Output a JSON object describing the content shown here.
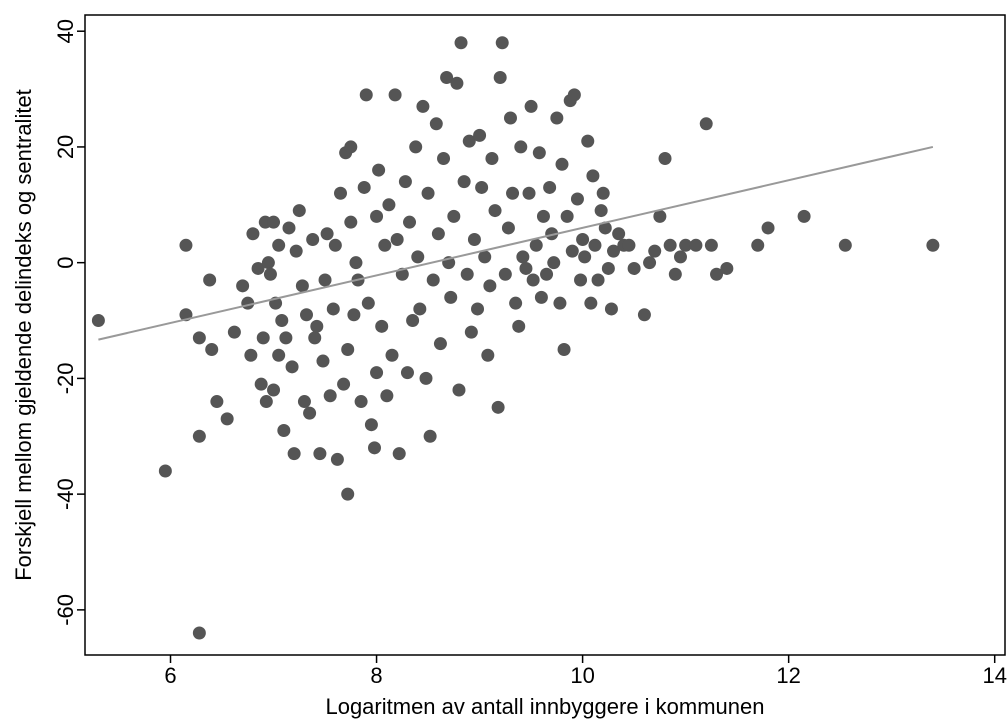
{
  "chart_data": {
    "type": "scatter",
    "xlabel": "Logaritmen av antall innbyggere i kommunen",
    "ylabel": "Forskjell mellom gjeldende delindeks og sentralitet",
    "xlim": [
      5.17,
      14.1
    ],
    "ylim": [
      -67.8,
      42.8
    ],
    "xticks": [
      6,
      8,
      10,
      12,
      14
    ],
    "yticks": [
      -60,
      -40,
      -20,
      0,
      20,
      40
    ],
    "grid": false,
    "series": [
      {
        "color": "#555555",
        "x": [
          5.3,
          5.95,
          6.15,
          6.15,
          6.28,
          6.28,
          6.28,
          6.38,
          6.4,
          6.45,
          6.55,
          6.62,
          6.7,
          6.75,
          6.78,
          6.8,
          6.85,
          6.88,
          6.9,
          6.92,
          6.93,
          6.95,
          6.97,
          7.0,
          7.0,
          7.02,
          7.05,
          7.05,
          7.08,
          7.1,
          7.12,
          7.15,
          7.18,
          7.2,
          7.22,
          7.25,
          7.28,
          7.3,
          7.32,
          7.35,
          7.38,
          7.4,
          7.42,
          7.45,
          7.48,
          7.5,
          7.52,
          7.55,
          7.58,
          7.6,
          7.62,
          7.65,
          7.68,
          7.7,
          7.72,
          7.72,
          7.75,
          7.75,
          7.78,
          7.8,
          7.82,
          7.85,
          7.88,
          7.9,
          7.92,
          7.95,
          7.98,
          8.0,
          8.0,
          8.02,
          8.05,
          8.08,
          8.1,
          8.12,
          8.15,
          8.18,
          8.2,
          8.22,
          8.25,
          8.28,
          8.3,
          8.32,
          8.35,
          8.38,
          8.4,
          8.42,
          8.45,
          8.48,
          8.5,
          8.52,
          8.55,
          8.58,
          8.6,
          8.62,
          8.65,
          8.68,
          8.7,
          8.72,
          8.75,
          8.78,
          8.8,
          8.82,
          8.85,
          8.88,
          8.9,
          8.92,
          8.95,
          8.98,
          9.0,
          9.02,
          9.05,
          9.08,
          9.1,
          9.12,
          9.15,
          9.18,
          9.2,
          9.22,
          9.25,
          9.28,
          9.3,
          9.32,
          9.35,
          9.38,
          9.4,
          9.42,
          9.45,
          9.48,
          9.5,
          9.52,
          9.55,
          9.58,
          9.6,
          9.62,
          9.65,
          9.68,
          9.7,
          9.72,
          9.75,
          9.78,
          9.8,
          9.82,
          9.85,
          9.88,
          9.9,
          9.92,
          9.95,
          9.98,
          10.0,
          10.02,
          10.05,
          10.08,
          10.1,
          10.12,
          10.15,
          10.18,
          10.2,
          10.22,
          10.25,
          10.28,
          10.3,
          10.35,
          10.4,
          10.45,
          10.5,
          10.6,
          10.65,
          10.7,
          10.75,
          10.8,
          10.85,
          10.9,
          10.95,
          11.0,
          11.1,
          11.2,
          11.25,
          11.3,
          11.4,
          11.7,
          11.8,
          12.15,
          12.55,
          13.4
        ],
        "values": [
          -10,
          -36,
          3,
          -9,
          -13,
          -30,
          -64,
          -3,
          -15,
          -24,
          -27,
          -12,
          -4,
          -7,
          -16,
          5,
          -1,
          -21,
          -13,
          7,
          -24,
          0,
          -2,
          -22,
          7,
          -7,
          -16,
          3,
          -10,
          -29,
          -13,
          6,
          -18,
          -33,
          2,
          9,
          -4,
          -24,
          -9,
          -26,
          4,
          -13,
          -11,
          -33,
          -17,
          -3,
          5,
          -23,
          -8,
          3,
          -34,
          12,
          -21,
          19,
          -40,
          -15,
          7,
          20,
          -9,
          0,
          -3,
          -24,
          13,
          29,
          -7,
          -28,
          -32,
          -19,
          8,
          16,
          -11,
          3,
          -23,
          10,
          -16,
          29,
          4,
          -33,
          -2,
          14,
          -19,
          7,
          -10,
          20,
          1,
          -8,
          27,
          -20,
          12,
          -30,
          -3,
          24,
          5,
          -14,
          18,
          32,
          0,
          -6,
          8,
          31,
          -22,
          38,
          14,
          -2,
          21,
          -12,
          4,
          -8,
          22,
          13,
          1,
          -16,
          -4,
          18,
          9,
          -25,
          32,
          38,
          -2,
          6,
          25,
          12,
          -7,
          -11,
          20,
          1,
          -1,
          12,
          27,
          -3,
          3,
          19,
          -6,
          8,
          -2,
          13,
          5,
          0,
          25,
          -7,
          17,
          -15,
          8,
          28,
          2,
          29,
          11,
          -3,
          4,
          1,
          21,
          -7,
          15,
          3,
          -3,
          9,
          12,
          6,
          -1,
          -8,
          2,
          5,
          3,
          3,
          -1,
          -9,
          0,
          2,
          8,
          18,
          3,
          -2,
          1,
          3,
          3,
          24,
          3,
          -2,
          -1,
          3,
          6,
          8,
          3,
          3
        ]
      }
    ],
    "fit_line": {
      "color": "#999999",
      "x": [
        5.3,
        13.4
      ],
      "values": [
        -13.3,
        20
      ]
    }
  }
}
